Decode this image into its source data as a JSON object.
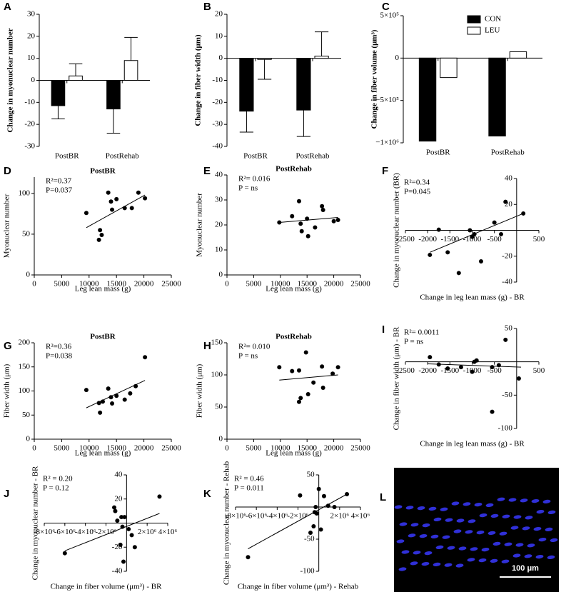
{
  "chart_data": [
    {
      "type": "bar",
      "panel": "A",
      "ylabel": "Change in myonuclear number",
      "categories": [
        "PostBR",
        "PostRehab"
      ],
      "series": [
        {
          "name": "CON",
          "color": "#000000",
          "values": [
            -11.5,
            -13
          ],
          "errors": [
            6,
            11
          ]
        },
        {
          "name": "LEU",
          "color": "#ffffff",
          "values": [
            2,
            9
          ],
          "errors": [
            5.5,
            10.5
          ]
        }
      ],
      "ylim": [
        -30,
        30
      ],
      "yticks": [
        -30,
        -20,
        -10,
        0,
        10,
        20,
        30
      ]
    },
    {
      "type": "bar",
      "panel": "B",
      "ylabel": "Change in fiber width (μm)",
      "categories": [
        "PostBR",
        "PostRehab"
      ],
      "series": [
        {
          "name": "CON",
          "color": "#000000",
          "values": [
            -24,
            -23.5
          ],
          "errors": [
            9.5,
            12
          ]
        },
        {
          "name": "LEU",
          "color": "#ffffff",
          "values": [
            -0.5,
            1
          ],
          "errors": [
            9,
            11
          ]
        }
      ],
      "ylim": [
        -40,
        20
      ],
      "yticks": [
        -40,
        -30,
        -20,
        -10,
        0,
        10,
        20
      ]
    },
    {
      "type": "bar",
      "panel": "C",
      "ylabel": "Change in fiber volume (μm³)",
      "categories": [
        "PostBR",
        "PostRehab"
      ],
      "legend": "upper right",
      "series": [
        {
          "name": "CON",
          "color": "#000000",
          "values": [
            -980000,
            -920000
          ]
        },
        {
          "name": "LEU",
          "color": "#ffffff",
          "values": [
            -230000,
            75000
          ]
        }
      ],
      "ylim": [
        -1000000,
        500000
      ],
      "yticks": [
        {
          "value": -1000000,
          "label": "−1×10⁶"
        },
        {
          "value": -500000,
          "label": "−5×10⁵"
        },
        0,
        {
          "value": 500000,
          "label": "5×10⁵"
        }
      ]
    },
    {
      "type": "scatter",
      "panel": "D",
      "title": "PostBR",
      "xlabel": "Leg lean mass (g)",
      "ylabel": "Myonuclear number",
      "annotations": [
        "R²=0.37",
        "P=0.037"
      ],
      "axis_position": "box",
      "x": [
        9500,
        13500,
        14000,
        14200,
        15000,
        12000,
        11800,
        12300,
        16500,
        17800,
        19000,
        20200
      ],
      "y": [
        76,
        101,
        90,
        80,
        93,
        55,
        43,
        49,
        82,
        82,
        101,
        94
      ],
      "trend": {
        "x": [
          9500,
          20200
        ],
        "y": [
          58,
          98
        ]
      },
      "xlim": [
        0,
        25000
      ],
      "xticks": [
        0,
        5000,
        10000,
        15000,
        20000,
        25000
      ],
      "ylim": [
        0,
        120
      ],
      "yticks": [
        0,
        50,
        100
      ]
    },
    {
      "type": "scatter",
      "panel": "E",
      "title": "PostRehab",
      "xlabel": "Leg lean mass (g)",
      "ylabel": "Myonuclear number",
      "annotations": [
        "R²= 0.016",
        "P = ns"
      ],
      "axis_position": "box",
      "x": [
        9800,
        12200,
        13500,
        13800,
        14000,
        15000,
        15200,
        16500,
        17800,
        18000,
        20000,
        20800
      ],
      "y": [
        21,
        23.5,
        29.5,
        20.5,
        17.5,
        22.5,
        15.5,
        19,
        27.5,
        26,
        21.5,
        22
      ],
      "trend": {
        "x": [
          9800,
          20800
        ],
        "y": [
          21,
          23
        ]
      },
      "xlim": [
        0,
        25000
      ],
      "xticks": [
        0,
        5000,
        10000,
        15000,
        20000,
        25000
      ],
      "ylim": [
        0,
        40
      ],
      "yticks": [
        0,
        10,
        20,
        30,
        40
      ]
    },
    {
      "type": "scatter",
      "panel": "F",
      "xlabel": "Change in leg lean mass (g) - BR",
      "ylabel": "Change in myonuclear number (BR)",
      "annotations": [
        "R²=0.34",
        "P=0.045"
      ],
      "axis_position": "origin",
      "x": [
        -1750,
        -1950,
        -1550,
        -1300,
        -1050,
        -1000,
        -950,
        -800,
        -500,
        -350,
        -250,
        150
      ],
      "y": [
        0.5,
        -19,
        -17,
        -33,
        0,
        -5,
        -3,
        -24,
        6,
        -3,
        22,
        13
      ],
      "trend": {
        "x": [
          -1950,
          150
        ],
        "y": [
          -17,
          13
        ]
      },
      "xlim": [
        -2500,
        500
      ],
      "xticks": [
        -2500,
        -2000,
        -1500,
        -1000,
        -500,
        500
      ],
      "ylim": [
        -40,
        40
      ],
      "yticks": [
        -40,
        -20,
        20,
        40
      ]
    },
    {
      "type": "scatter",
      "panel": "G",
      "title": "PostBR",
      "xlabel": "Leg lean mass (g)",
      "ylabel": "Fiber width (μm)",
      "annotations": [
        "R²=0.36",
        "P=0.038"
      ],
      "axis_position": "box",
      "x": [
        9500,
        11800,
        12000,
        12500,
        13500,
        14000,
        14200,
        15000,
        16500,
        17500,
        18500,
        20200
      ],
      "y": [
        102,
        75,
        55,
        78,
        105,
        87,
        74,
        90,
        82,
        95,
        110,
        170
      ],
      "trend": {
        "x": [
          9500,
          20200
        ],
        "y": [
          65,
          122
        ]
      },
      "xlim": [
        0,
        25000
      ],
      "xticks": [
        0,
        5000,
        10000,
        15000,
        20000,
        25000
      ],
      "ylim": [
        0,
        200
      ],
      "yticks": [
        0,
        50,
        100,
        150,
        200
      ]
    },
    {
      "type": "scatter",
      "panel": "H",
      "title": "PostRehab",
      "xlabel": "Leg lean mass (g)",
      "ylabel": "Fiber width (μm)",
      "annotations": [
        "R²= 0.010",
        "P = ns"
      ],
      "axis_position": "box",
      "x": [
        9800,
        12200,
        13500,
        13500,
        13800,
        14800,
        15200,
        16200,
        17800,
        18000,
        19800,
        20800
      ],
      "y": [
        112,
        106,
        107,
        58,
        64,
        135,
        70,
        88,
        113,
        80,
        102,
        112
      ],
      "trend": {
        "x": [
          9800,
          20800
        ],
        "y": [
          92,
          100
        ]
      },
      "xlim": [
        0,
        25000
      ],
      "xticks": [
        0,
        5000,
        10000,
        15000,
        20000,
        25000
      ],
      "ylim": [
        0,
        150
      ],
      "yticks": [
        0,
        50,
        100,
        150
      ]
    },
    {
      "type": "scatter",
      "panel": "I",
      "xlabel": "Change in leg lean mass (g) - BR",
      "ylabel": "Change in fiber width (μm) - BR",
      "annotations": [
        "R²= 0.0011",
        "P = ns"
      ],
      "axis_position": "origin",
      "x": [
        -1950,
        -1750,
        -1550,
        -1250,
        -1000,
        -950,
        -900,
        -550,
        -400,
        -250,
        -550,
        50
      ],
      "y": [
        7,
        -4,
        -10,
        -8,
        -15,
        0,
        2,
        -8,
        -5,
        33,
        -75,
        -25
      ],
      "trend": {
        "x": [
          -2000,
          100
        ],
        "y": [
          -3,
          -8
        ]
      },
      "xlim": [
        -2500,
        500
      ],
      "xticks": [
        -2500,
        -2000,
        -1500,
        -1000,
        -500,
        500
      ],
      "ylim": [
        -100,
        50
      ],
      "yticks": [
        -100,
        -50,
        50
      ]
    },
    {
      "type": "scatter",
      "panel": "J",
      "xlabel": "Change in fiber volume (μm³) - BR",
      "ylabel": "Change in myonuclear number - BR",
      "annotations": [
        "R² = 0.20",
        "P = 0.12"
      ],
      "axis_position": "origin",
      "x": [
        -6000000,
        -1200000,
        -1100000,
        -900000,
        -500000,
        -200000,
        -400000,
        -600000,
        -300000,
        200000,
        500000,
        800000,
        3200000
      ],
      "y": [
        -25,
        13,
        10,
        2,
        5,
        5,
        -3,
        -18,
        -32,
        -5,
        -10,
        -20,
        22
      ],
      "trend": {
        "x": [
          -6000000,
          3200000
        ],
        "y": [
          -23,
          8
        ]
      },
      "xlim": [
        -8000000,
        4000000
      ],
      "xticks": [
        {
          "value": -8000000,
          "label": "-8×10⁶"
        },
        {
          "value": -6000000,
          "label": "-6×10⁶"
        },
        {
          "value": -4000000,
          "label": "-4×10⁶"
        },
        {
          "value": -2000000,
          "label": "-2×10⁶"
        },
        {
          "value": 2000000,
          "label": "2×10⁶"
        },
        {
          "value": 4000000,
          "label": "4×10⁶"
        }
      ],
      "ylim": [
        -40,
        40
      ],
      "yticks": [
        -40,
        -20,
        20,
        40
      ]
    },
    {
      "type": "scatter",
      "panel": "K",
      "xlabel": "Change in fiber volume (μm³) - Rehab",
      "ylabel": "Change in myonuclear number - Rehab",
      "annotations": [
        "R² = 0.46",
        "P = 0.011"
      ],
      "axis_position": "origin",
      "x": [
        -6800000,
        -1800000,
        -800000,
        -500000,
        -400000,
        -300000,
        -200000,
        0,
        200000,
        500000,
        900000,
        1500000,
        2700000
      ],
      "y": [
        -78,
        18,
        -40,
        -30,
        -8,
        0,
        -10,
        28,
        -35,
        17,
        2,
        0,
        20
      ],
      "trend": {
        "x": [
          -6800000,
          2700000
        ],
        "y": [
          -65,
          20
        ]
      },
      "xlim": [
        -8000000,
        4000000
      ],
      "xticks": [
        {
          "value": -8000000,
          "label": "-8×10⁶"
        },
        {
          "value": -6000000,
          "label": "-6×10⁶"
        },
        {
          "value": -4000000,
          "label": "-4×10⁶"
        },
        {
          "value": -2000000,
          "label": "-2×10⁶"
        },
        {
          "value": 2000000,
          "label": "2×10⁶"
        },
        {
          "value": 4000000,
          "label": "4×10⁶"
        }
      ],
      "ylim": [
        -100,
        50
      ],
      "yticks": [
        -100,
        -50,
        50
      ]
    }
  ],
  "image_panel": {
    "panel": "L",
    "scale_bar": "100 μm"
  }
}
